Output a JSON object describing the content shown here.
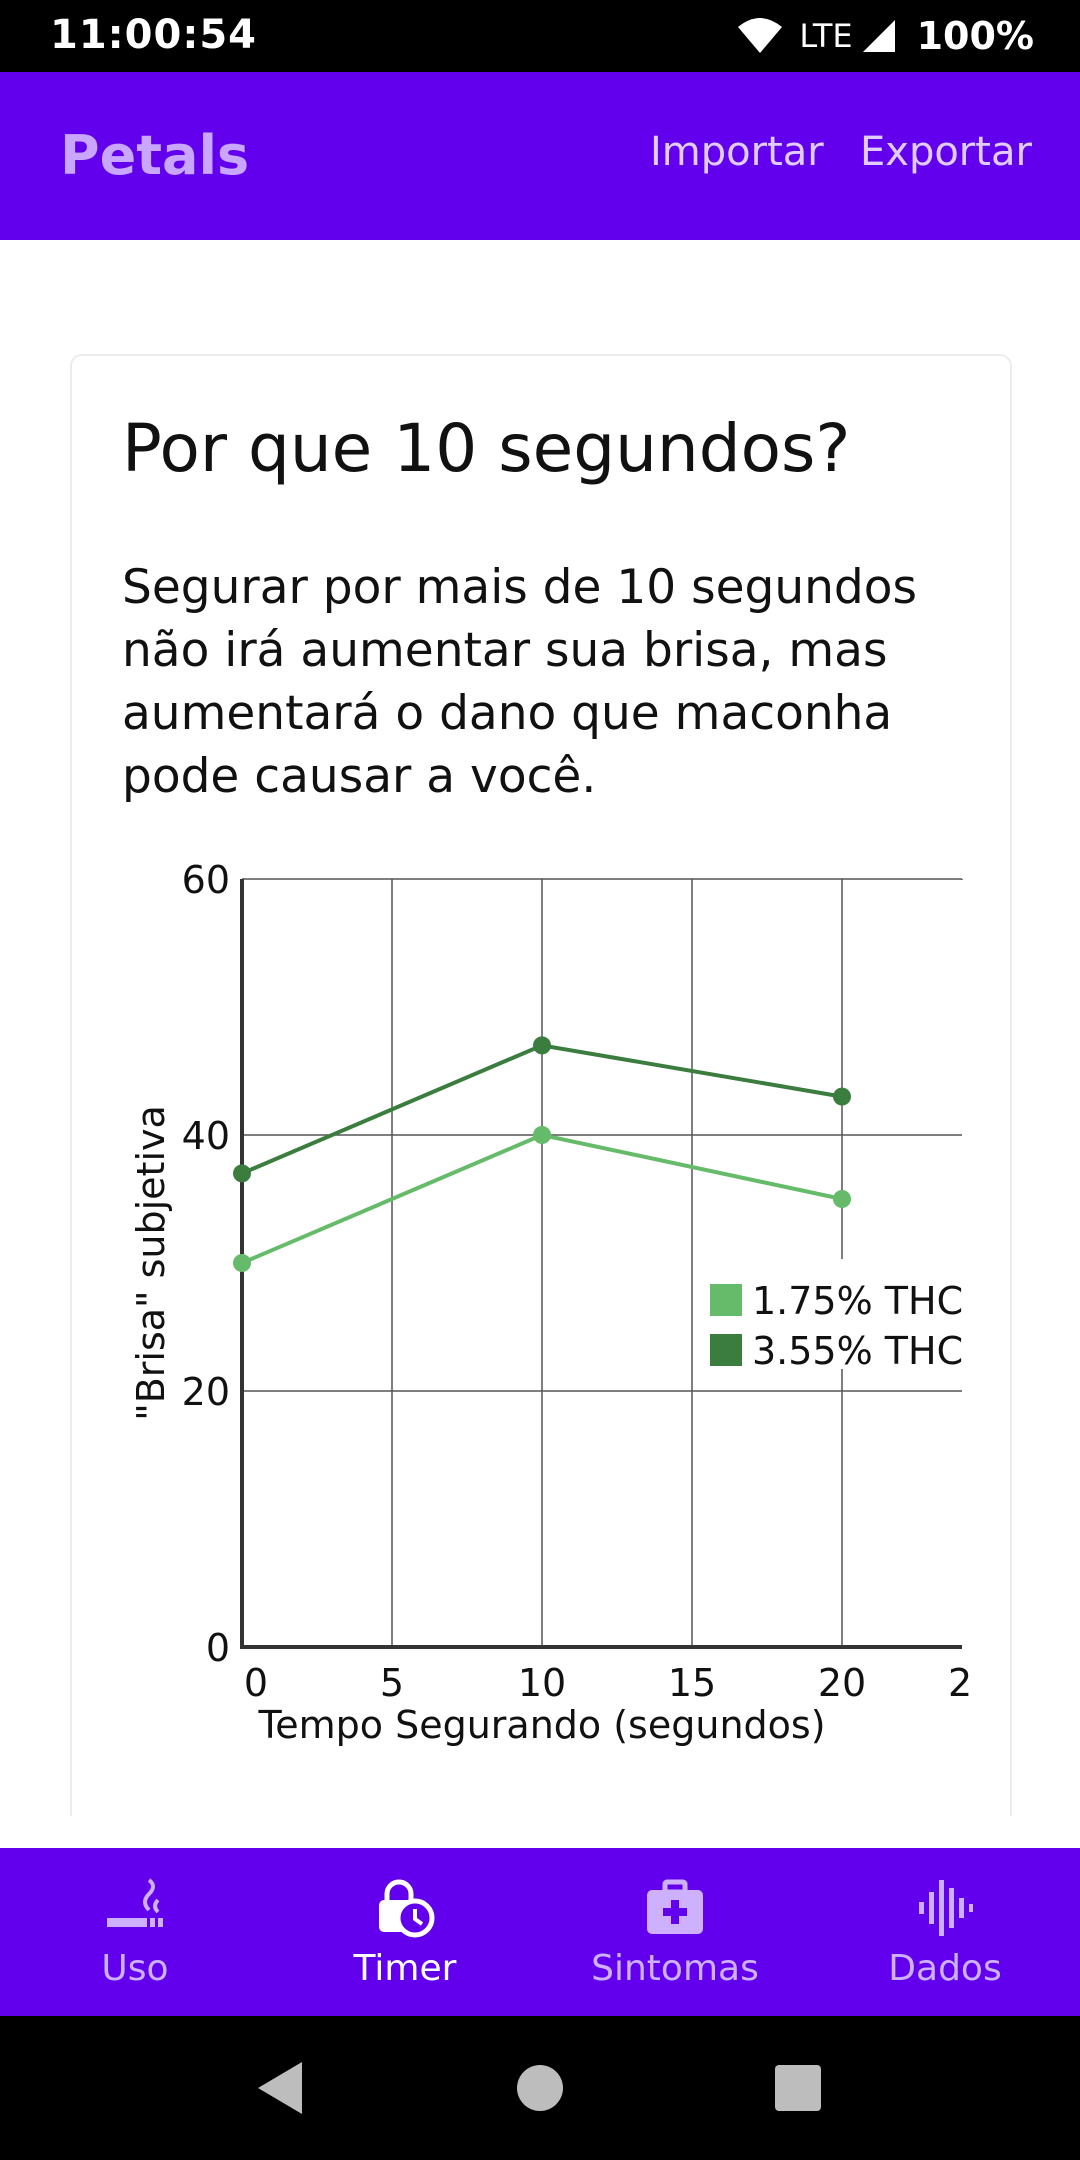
{
  "status_bar": {
    "time": "11:00:54",
    "network": "LTE",
    "battery": "100%"
  },
  "app_bar": {
    "title": "Petals",
    "import_label": "Importar",
    "export_label": "Exportar"
  },
  "card": {
    "title": "Por que 10 segundos?",
    "description": "Segurar por mais de 10 segundos não irá aumentar sua brisa, mas aumentará o dano que maconha pode causar a você."
  },
  "chart_data": {
    "type": "line",
    "xlabel": "Tempo Segurando (segundos)",
    "ylabel": "\"Brisa\" subjetiva",
    "xlim": [
      0,
      24
    ],
    "ylim": [
      0,
      60
    ],
    "x_ticks": [
      "0",
      "5",
      "10",
      "15",
      "20",
      "2"
    ],
    "y_ticks": [
      "0",
      "20",
      "40",
      "60"
    ],
    "grid": true,
    "legend_position": "right",
    "x": [
      0,
      10,
      20
    ],
    "series": [
      {
        "name": "1.75% THC",
        "color": "#66bb6a",
        "values": [
          30,
          40,
          35
        ]
      },
      {
        "name": "3.55% THC",
        "color": "#3b7d3e",
        "values": [
          37,
          47,
          43
        ]
      }
    ]
  },
  "bottom_nav": {
    "items": [
      {
        "label": "Uso",
        "icon": "smoking-icon",
        "active": false
      },
      {
        "label": "Timer",
        "icon": "timer-lock-icon",
        "active": true
      },
      {
        "label": "Sintomas",
        "icon": "medical-kit-icon",
        "active": false
      },
      {
        "label": "Dados",
        "icon": "waveform-icon",
        "active": false
      }
    ]
  },
  "colors": {
    "primary": "#6200ee",
    "title_accent": "#c9a6ff"
  }
}
